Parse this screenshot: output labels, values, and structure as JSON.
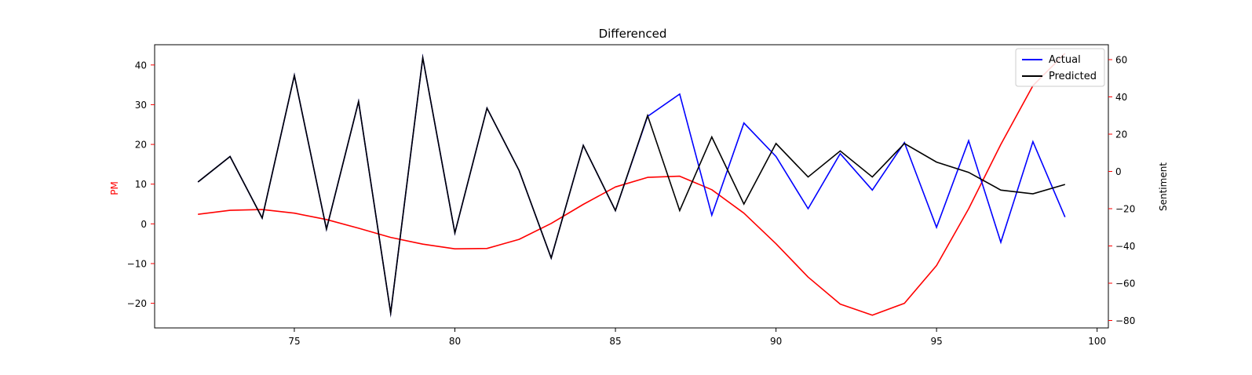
{
  "chart_data": {
    "type": "line",
    "title": "Differenced",
    "xlabel": "",
    "ylabel_left": "PM",
    "ylabel_right": "Sentiment",
    "xlim": [
      70.65,
      100.35
    ],
    "ylim_left": [
      -26.2,
      45.1
    ],
    "ylim_right": [
      -84,
      68
    ],
    "x_ticks": [
      75,
      80,
      85,
      90,
      95,
      100
    ],
    "y_left_ticks": [
      -20,
      -10,
      0,
      10,
      20,
      30,
      40
    ],
    "y_right_ticks": [
      -80,
      -60,
      -40,
      -20,
      0,
      20,
      40,
      60
    ],
    "legend_position": "top-right",
    "grid": false,
    "colors": {
      "pm": "#ff0000",
      "actual": "#0000ff",
      "predicted": "#000000",
      "left_axis_label": "#ff0000",
      "right_ticks": "#ff0000",
      "axis": "#000000"
    },
    "x": [
      72,
      73,
      74,
      75,
      76,
      77,
      78,
      79,
      80,
      81,
      82,
      83,
      84,
      85,
      86,
      87,
      88,
      89,
      90,
      91,
      92,
      93,
      94,
      95,
      96,
      97,
      98,
      99
    ],
    "pm_series": {
      "axis": "left",
      "values": [
        2.4,
        3.4,
        3.6,
        2.7,
        1.1,
        -1.1,
        -3.4,
        -5.1,
        -6.3,
        -6.2,
        -3.9,
        0.1,
        4.9,
        9.3,
        11.7,
        12.0,
        8.6,
        2.7,
        -5.0,
        -13.4,
        -20.2,
        -23.0,
        -20.0,
        -10.5,
        3.8,
        20.0,
        34.8,
        42.9
      ]
    },
    "series": [
      {
        "name": "Actual",
        "axis": "right",
        "values": [
          -5.7,
          8.0,
          -25.0,
          51.5,
          -31.0,
          37.5,
          -76.0,
          61.0,
          -33.0,
          34.0,
          0.5,
          -46.5,
          14.0,
          -21.0,
          29.5,
          41.5,
          -23.5,
          26.0,
          8.0,
          -20.0,
          9.5,
          -10.0,
          15.5,
          -30.0,
          16.5,
          -38.0,
          16.0,
          -24.5
        ]
      },
      {
        "name": "Predicted",
        "axis": "right",
        "values": [
          -5.7,
          8.0,
          -25.0,
          51.5,
          -31.0,
          37.5,
          -76.0,
          61.0,
          -33.0,
          34.0,
          0.5,
          -46.5,
          14.0,
          -21.0,
          30.0,
          -21.0,
          18.5,
          -17.5,
          15.0,
          -3.0,
          11.0,
          -3.0,
          15.0,
          5.0,
          -0.5,
          -10.0,
          -12.0,
          -7.0
        ]
      }
    ]
  }
}
